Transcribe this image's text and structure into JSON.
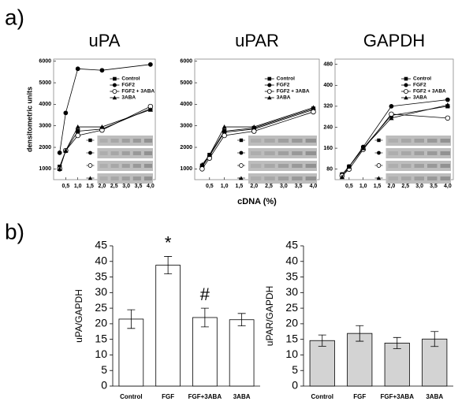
{
  "panels": [
    "a)",
    "b)"
  ],
  "chart_data": [
    {
      "type": "line",
      "title": "uPA",
      "ylabel": "densitometric units",
      "x": [
        0.25,
        0.5,
        1.0,
        2.0,
        4.0
      ],
      "xlim": [
        0,
        4.2
      ],
      "xticks": [
        {
          "value": 0.5,
          "label": "0,5"
        },
        {
          "value": 1.0,
          "label": "1,0"
        },
        {
          "value": 1.5,
          "label": "1,5"
        },
        {
          "value": 2.0,
          "label": "2,0"
        },
        {
          "value": 2.5,
          "label": "2,5"
        },
        {
          "value": 3.0,
          "label": "3,0"
        },
        {
          "value": 3.5,
          "label": "3,5"
        },
        {
          "value": 4.0,
          "label": "4,0"
        }
      ],
      "ylim": [
        500,
        6100
      ],
      "yticks": [
        1000,
        2000,
        3000,
        4000,
        5000,
        6000
      ],
      "legend": "upper right",
      "series": [
        {
          "name": "Control",
          "marker": "square",
          "color": "#000000",
          "values": [
            1100,
            1850,
            2750,
            2850,
            3800
          ]
        },
        {
          "name": "FGF2",
          "marker": "circle",
          "color": "#000000",
          "values": [
            1750,
            3600,
            5650,
            5580,
            5850
          ]
        },
        {
          "name": "FGF2 + 3ABA",
          "marker": "open-circle",
          "color": "#000000",
          "values": [
            1000,
            1850,
            2550,
            2800,
            3900
          ]
        },
        {
          "name": "3ABA",
          "marker": "triangle",
          "color": "#000000",
          "values": [
            1000,
            1850,
            2950,
            2950,
            3750
          ]
        }
      ]
    },
    {
      "type": "line",
      "title": "uPAR",
      "xlabel": "cDNA (%)",
      "x": [
        0.25,
        0.5,
        1.0,
        2.0,
        4.0
      ],
      "xlim": [
        0,
        4.2
      ],
      "xticks": [
        {
          "value": 0.5,
          "label": "0,5"
        },
        {
          "value": 1.0,
          "label": "1,0"
        },
        {
          "value": 1.5,
          "label": "1,5"
        },
        {
          "value": 2.0,
          "label": "2,0"
        },
        {
          "value": 2.5,
          "label": "2,5"
        },
        {
          "value": 3.0,
          "label": "3,0"
        },
        {
          "value": 3.5,
          "label": "3,5"
        },
        {
          "value": 4.0,
          "label": "4,0"
        }
      ],
      "ylim": [
        500,
        6100
      ],
      "yticks": [
        1000,
        2000,
        3000,
        4000,
        5000,
        6000
      ],
      "legend": "upper right",
      "series": [
        {
          "name": "Control",
          "marker": "square",
          "color": "#000000",
          "values": [
            1150,
            1650,
            2750,
            2900,
            3800
          ]
        },
        {
          "name": "FGF2",
          "marker": "circle",
          "color": "#000000",
          "values": [
            1100,
            1600,
            2700,
            2850,
            3750
          ]
        },
        {
          "name": "FGF2 + 3ABA",
          "marker": "open-circle",
          "color": "#000000",
          "values": [
            1000,
            1500,
            2550,
            2750,
            3650
          ]
        },
        {
          "name": "3ABA",
          "marker": "triangle",
          "color": "#000000",
          "values": [
            1200,
            1650,
            2950,
            2950,
            3850
          ]
        }
      ]
    },
    {
      "type": "line",
      "title": "GAPDH",
      "x": [
        0.25,
        0.5,
        1.0,
        2.0,
        4.0
      ],
      "xlim": [
        0,
        4.2
      ],
      "xticks": [
        {
          "value": 0.5,
          "label": "0,5"
        },
        {
          "value": 1.0,
          "label": "1,0"
        },
        {
          "value": 1.5,
          "label": "1,5"
        },
        {
          "value": 2.0,
          "label": "2,0"
        },
        {
          "value": 2.5,
          "label": "2,5"
        },
        {
          "value": 3.0,
          "label": "3,0"
        },
        {
          "value": 3.5,
          "label": "3,5"
        },
        {
          "value": 4.0,
          "label": "4,0"
        }
      ],
      "ylim": [
        40,
        500
      ],
      "yticks": [
        80,
        160,
        240,
        320,
        400,
        480
      ],
      "legend": "upper right",
      "series": [
        {
          "name": "Control",
          "marker": "square",
          "color": "#000000",
          "values": [
            60,
            90,
            160,
            285,
            320
          ]
        },
        {
          "name": "FGF2",
          "marker": "circle",
          "color": "#000000",
          "values": [
            60,
            90,
            165,
            320,
            345
          ]
        },
        {
          "name": "FGF2 + 3ABA",
          "marker": "open-circle",
          "color": "#000000",
          "values": [
            55,
            80,
            155,
            290,
            275
          ]
        },
        {
          "name": "3ABA",
          "marker": "triangle",
          "color": "#000000",
          "values": [
            50,
            90,
            160,
            275,
            325
          ]
        }
      ]
    },
    {
      "type": "bar",
      "ylabel": "uPA/GAPDH",
      "categories": [
        "Control",
        "FGF",
        "FGF+3ABA",
        "3ABA"
      ],
      "values": [
        21.5,
        38.8,
        22,
        21.3
      ],
      "errors": [
        3,
        2.8,
        3,
        2
      ],
      "color": "#ffffff",
      "ylim": [
        0,
        45
      ],
      "yticks": [
        0,
        5,
        10,
        15,
        20,
        25,
        30,
        35,
        40,
        45
      ],
      "annotations": [
        {
          "text": "*",
          "x": "FGF"
        },
        {
          "text": "#",
          "x": "FGF+3ABA"
        }
      ]
    },
    {
      "type": "bar",
      "ylabel": "uPAR/GAPDH",
      "categories": [
        "Control",
        "FGF",
        "FGF+3ABA",
        "3ABA"
      ],
      "values": [
        14.6,
        16.9,
        13.8,
        15.1
      ],
      "errors": [
        1.8,
        2.5,
        1.8,
        2.4
      ],
      "color": "#d3d3d3",
      "ylim": [
        0,
        45
      ],
      "yticks": [
        0,
        5,
        10,
        15,
        20,
        25,
        30,
        35,
        40,
        45
      ]
    }
  ]
}
